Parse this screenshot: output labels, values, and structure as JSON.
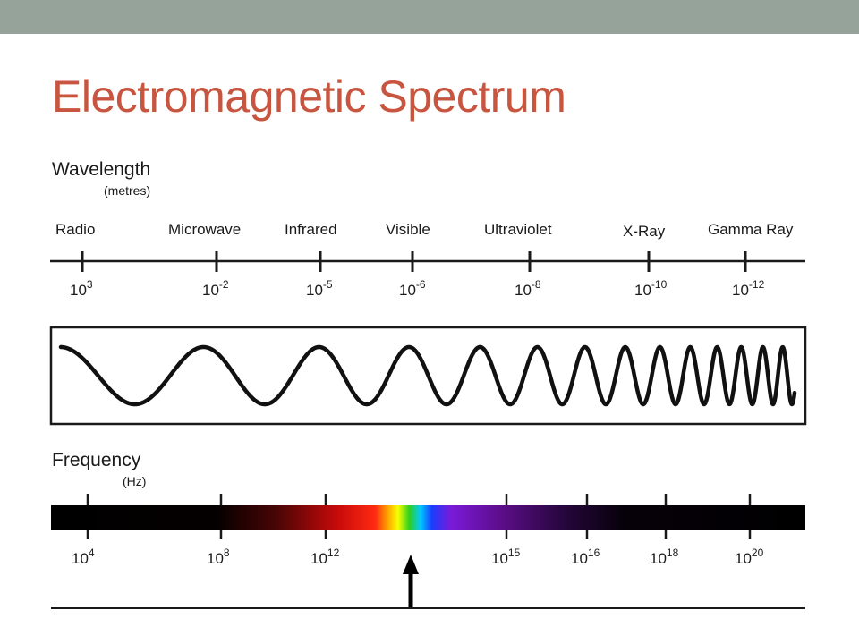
{
  "slide": {
    "title": "Electromagnetic Spectrum",
    "title_color": "#c8553f",
    "band_color": "#96a39a"
  },
  "wavelength": {
    "heading": "Wavelength",
    "unit": "(metres)",
    "bands": [
      "Radio",
      "Microwave",
      "Infrared",
      "Visible",
      "Ultraviolet",
      "X-Ray",
      "Gamma Ray"
    ],
    "ticks": [
      {
        "base": "10",
        "exp": "3"
      },
      {
        "base": "10",
        "exp": "-2"
      },
      {
        "base": "10",
        "exp": "-5"
      },
      {
        "base": "10",
        "exp": "-6"
      },
      {
        "base": "10",
        "exp": "-8"
      },
      {
        "base": "10",
        "exp": "-10"
      },
      {
        "base": "10",
        "exp": "-12"
      }
    ]
  },
  "wave": {
    "description_icon": "sine-wave-increasing-frequency"
  },
  "frequency": {
    "heading": "Frequency",
    "unit": "(Hz)",
    "ticks": [
      {
        "base": "10",
        "exp": "4"
      },
      {
        "base": "10",
        "exp": "8"
      },
      {
        "base": "10",
        "exp": "12"
      },
      {
        "base": "10",
        "exp": "15"
      },
      {
        "base": "10",
        "exp": "16"
      },
      {
        "base": "10",
        "exp": "18"
      },
      {
        "base": "10",
        "exp": "20"
      }
    ],
    "pointer_icon": "arrow-up-icon"
  }
}
